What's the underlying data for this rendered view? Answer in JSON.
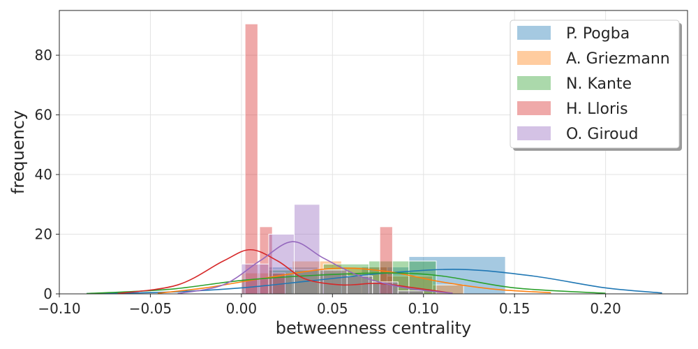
{
  "chart_data": {
    "type": "bar",
    "subtype": "histogram-with-kde",
    "xlabel": "betweenness centrality",
    "ylabel": "frequency",
    "xlim": [
      -0.1,
      0.245
    ],
    "ylim": [
      0,
      95
    ],
    "xticks": [
      -0.1,
      -0.05,
      0.0,
      0.05,
      0.1,
      0.15,
      0.2
    ],
    "xtick_labels": [
      "−0.10",
      "−0.05",
      "0.00",
      "0.05",
      "0.10",
      "0.15",
      "0.20"
    ],
    "yticks": [
      0,
      20,
      40,
      60,
      80
    ],
    "ytick_labels": [
      "0",
      "20",
      "40",
      "60",
      "80"
    ],
    "grid": true,
    "legend_position": "top-right",
    "series": [
      {
        "name": "P. Pogba",
        "color": "#1f77b4",
        "bins": [
          [
            0.0,
            0.015,
            5
          ],
          [
            0.015,
            0.042,
            9
          ],
          [
            0.042,
            0.066,
            7
          ],
          [
            0.066,
            0.092,
            9
          ],
          [
            0.092,
            0.145,
            12.5
          ]
        ],
        "kde": [
          [
            -0.085,
            0.1
          ],
          [
            -0.04,
            0.6
          ],
          [
            0.0,
            2
          ],
          [
            0.04,
            4.5
          ],
          [
            0.08,
            7
          ],
          [
            0.12,
            8.2
          ],
          [
            0.16,
            6
          ],
          [
            0.2,
            2
          ],
          [
            0.231,
            0.3
          ]
        ]
      },
      {
        "name": "A. Griezmann",
        "color": "#ff7f0e",
        "bins": [
          [
            0.0,
            0.028,
            7
          ],
          [
            0.028,
            0.055,
            11
          ],
          [
            0.055,
            0.08,
            9
          ],
          [
            0.08,
            0.105,
            6
          ],
          [
            0.105,
            0.122,
            3
          ]
        ],
        "kde": [
          [
            -0.046,
            0.2
          ],
          [
            -0.02,
            2
          ],
          [
            0.01,
            5
          ],
          [
            0.05,
            8.5
          ],
          [
            0.08,
            7.5
          ],
          [
            0.11,
            4
          ],
          [
            0.14,
            1.5
          ],
          [
            0.17,
            0.4
          ]
        ]
      },
      {
        "name": "N. Kante",
        "color": "#2ca02c",
        "bins": [
          [
            0.015,
            0.045,
            8
          ],
          [
            0.045,
            0.07,
            10
          ],
          [
            0.07,
            0.092,
            11
          ],
          [
            0.092,
            0.107,
            11
          ]
        ],
        "kde": [
          [
            -0.085,
            0.1
          ],
          [
            -0.04,
            1.5
          ],
          [
            0.0,
            4.5
          ],
          [
            0.04,
            6.2
          ],
          [
            0.08,
            7
          ],
          [
            0.11,
            6
          ],
          [
            0.15,
            2
          ],
          [
            0.2,
            0.2
          ]
        ]
      },
      {
        "name": "H. Lloris",
        "color": "#d62728",
        "bins": [
          [
            0.002,
            0.009,
            90.5
          ],
          [
            0.01,
            0.017,
            22.5
          ],
          [
            0.017,
            0.024,
            7
          ],
          [
            0.076,
            0.083,
            22.5
          ]
        ],
        "kde": [
          [
            -0.068,
            0.1
          ],
          [
            -0.035,
            3
          ],
          [
            -0.01,
            11
          ],
          [
            0.005,
            14.8
          ],
          [
            0.02,
            11
          ],
          [
            0.035,
            5
          ],
          [
            0.055,
            3
          ],
          [
            0.075,
            3.5
          ],
          [
            0.095,
            2
          ],
          [
            0.116,
            0.2
          ]
        ]
      },
      {
        "name": "O. Giroud",
        "color": "#9467bd",
        "bins": [
          [
            0.0,
            0.015,
            10
          ],
          [
            0.015,
            0.029,
            20
          ],
          [
            0.029,
            0.043,
            30
          ],
          [
            0.043,
            0.058,
            8
          ],
          [
            0.058,
            0.072,
            6
          ],
          [
            0.072,
            0.086,
            4
          ],
          [
            0.086,
            0.1,
            1
          ]
        ],
        "kde": [
          [
            -0.035,
            0.1
          ],
          [
            -0.01,
            3
          ],
          [
            0.01,
            11
          ],
          [
            0.028,
            17.5
          ],
          [
            0.045,
            12
          ],
          [
            0.065,
            6
          ],
          [
            0.09,
            2
          ],
          [
            0.116,
            0.2
          ]
        ]
      }
    ]
  }
}
